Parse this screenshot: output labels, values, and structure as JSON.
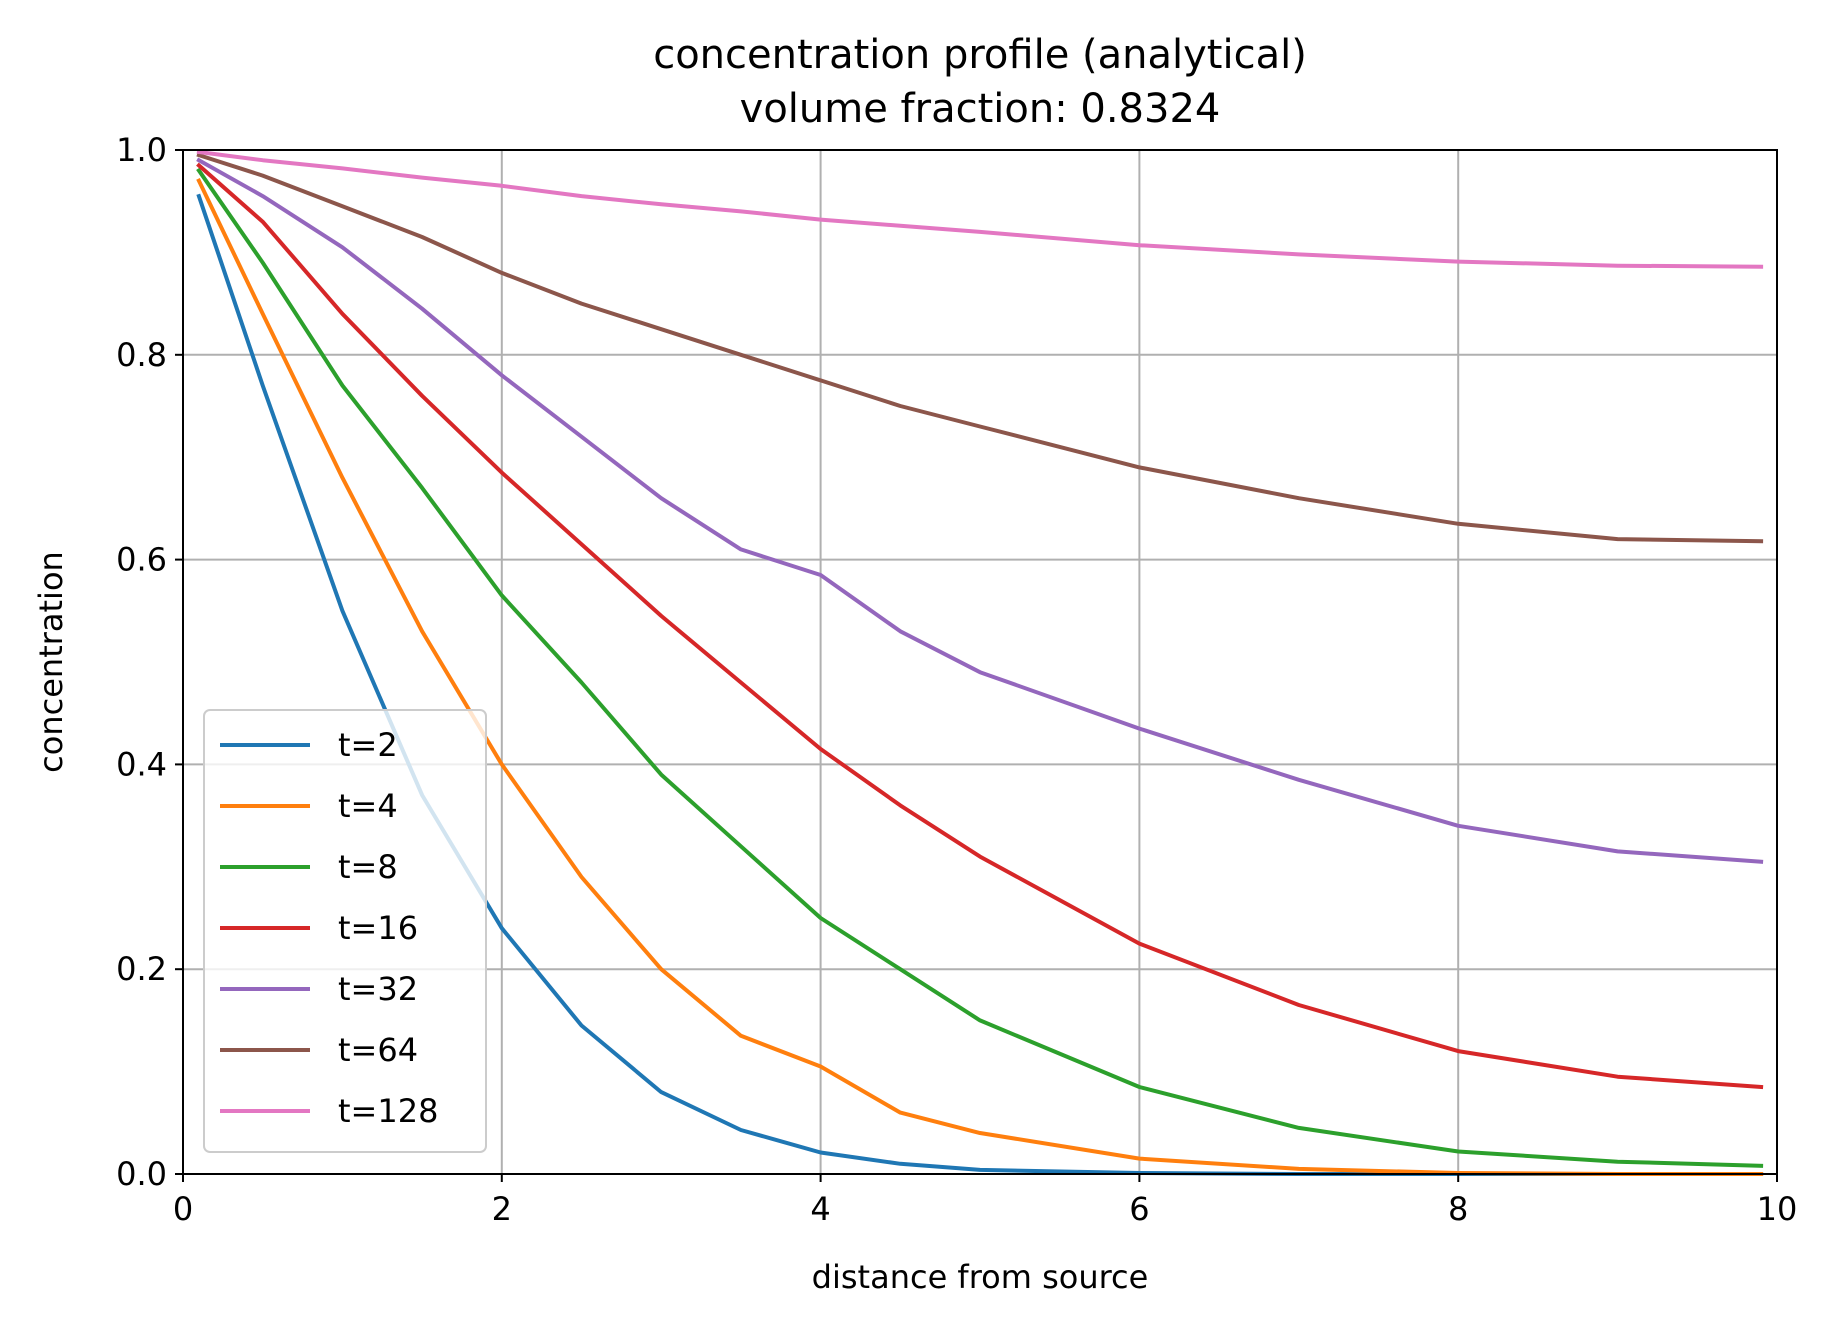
{
  "chart_data": {
    "type": "line",
    "title": "concentration profile (analytical)",
    "subtitle": "volume fraction: 0.8324",
    "xlabel": "distance from source",
    "ylabel": "concentration",
    "xlim": [
      0,
      10
    ],
    "ylim": [
      0,
      1
    ],
    "xticks": [
      0,
      2,
      4,
      6,
      8,
      10
    ],
    "xtick_labels": [
      "0",
      "2",
      "4",
      "6",
      "8",
      "10"
    ],
    "yticks": [
      0,
      0.2,
      0.4,
      0.6,
      0.8,
      1.0
    ],
    "ytick_labels": [
      "0.0",
      "0.2",
      "0.4",
      "0.6",
      "0.8",
      "1.0"
    ],
    "grid": true,
    "legend_position": "lower-left",
    "x": [
      0.1,
      0.5,
      1,
      1.5,
      2,
      2.5,
      3,
      3.5,
      4,
      4.5,
      5,
      6,
      7,
      8,
      9,
      9.9
    ],
    "series": [
      {
        "name": "t=2",
        "color": "#1f77b4",
        "values": [
          0.955,
          0.77,
          0.55,
          0.37,
          0.24,
          0.145,
          0.08,
          0.043,
          0.021,
          0.01,
          0.004,
          0.001,
          0.0,
          0.0,
          0.0,
          0.0
        ]
      },
      {
        "name": "t=4",
        "color": "#ff7f0e",
        "values": [
          0.97,
          0.84,
          0.68,
          0.53,
          0.4,
          0.29,
          0.2,
          0.135,
          0.105,
          0.06,
          0.04,
          0.015,
          0.005,
          0.001,
          0.0,
          0.0
        ]
      },
      {
        "name": "t=8",
        "color": "#2ca02c",
        "values": [
          0.98,
          0.89,
          0.77,
          0.67,
          0.565,
          0.48,
          0.39,
          0.32,
          0.25,
          0.2,
          0.15,
          0.085,
          0.045,
          0.022,
          0.012,
          0.008
        ]
      },
      {
        "name": "t=16",
        "color": "#d62728",
        "values": [
          0.985,
          0.93,
          0.84,
          0.76,
          0.685,
          0.615,
          0.545,
          0.48,
          0.415,
          0.36,
          0.31,
          0.225,
          0.165,
          0.12,
          0.095,
          0.085
        ]
      },
      {
        "name": "t=32",
        "color": "#9467bd",
        "values": [
          0.99,
          0.955,
          0.905,
          0.845,
          0.78,
          0.72,
          0.66,
          0.61,
          0.585,
          0.53,
          0.49,
          0.435,
          0.385,
          0.34,
          0.315,
          0.305
        ]
      },
      {
        "name": "t=64",
        "color": "#8c564b",
        "values": [
          0.995,
          0.975,
          0.945,
          0.915,
          0.88,
          0.85,
          0.825,
          0.8,
          0.775,
          0.75,
          0.73,
          0.69,
          0.66,
          0.635,
          0.62,
          0.618
        ]
      },
      {
        "name": "t=128",
        "color": "#e377c2",
        "values": [
          0.998,
          0.99,
          0.982,
          0.973,
          0.965,
          0.955,
          0.947,
          0.94,
          0.932,
          0.926,
          0.92,
          0.907,
          0.898,
          0.891,
          0.887,
          0.886
        ]
      }
    ]
  }
}
